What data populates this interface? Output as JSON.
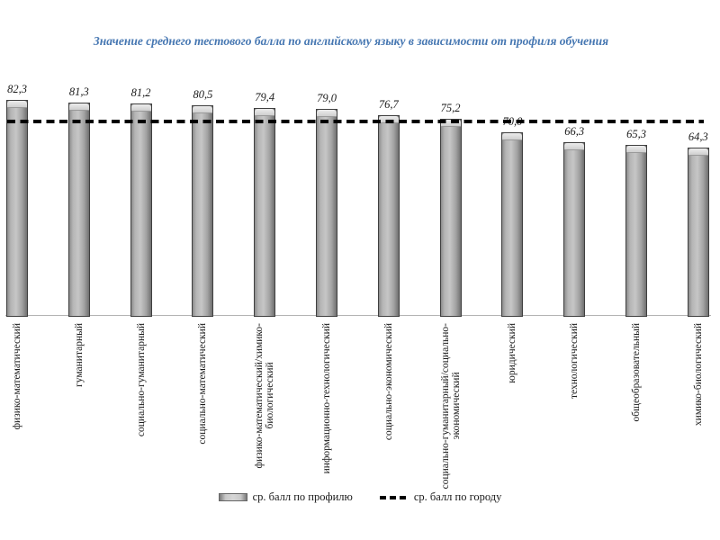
{
  "title": "Значение среднего тестового балла по английскому языку в зависимости от профиля обучения",
  "accent_color": "#4677b2",
  "legend": {
    "profile_label": "ср. балл по профилю",
    "city_label": "ср. балл по городу"
  },
  "chart_data": {
    "type": "bar",
    "title": "Значение среднего тестового балла по английскому языку в зависимости от профиля обучения",
    "categories": [
      "физико-математический",
      "гуманитарный",
      "социально-гуманитарный",
      "социально-математический",
      "физико-математический/химико-биологический",
      "информационно-технологический",
      "социально-экономический",
      "социально-гуманитарный/социально-экономический",
      "юридический",
      "технологический",
      "общеобразовательный",
      "химико-биологический"
    ],
    "category_lines": [
      [
        "физико-математический"
      ],
      [
        "гуманитарный"
      ],
      [
        "социально-гуманитарный"
      ],
      [
        "социально-математический"
      ],
      [
        "физико-математический/химико-",
        "биологический"
      ],
      [
        "информационно-технологический"
      ],
      [
        "социально-экономический"
      ],
      [
        "социально-гуманитарный/социально-",
        "экономический"
      ],
      [
        "юридический"
      ],
      [
        "технологический"
      ],
      [
        "общеобразовательный"
      ],
      [
        "химико-биологический"
      ]
    ],
    "values": [
      82.3,
      81.3,
      81.2,
      80.5,
      79.4,
      79.0,
      76.7,
      75.2,
      70.0,
      66.3,
      65.3,
      64.3
    ],
    "value_labels": [
      "82,3",
      "81,3",
      "81,2",
      "80,5",
      "79,4",
      "79,0",
      "76,7",
      "75,2",
      "70,0",
      "66,3",
      "65,3",
      "64,3"
    ],
    "city_average_line": 74,
    "ylim": [
      0,
      90
    ],
    "grid": false,
    "legend_position": "bottom",
    "bar_color": "#a6a6a6",
    "line_color": "#000000",
    "series": [
      {
        "name": "ср. балл по профилю",
        "type": "bar"
      },
      {
        "name": "ср. балл по городу",
        "type": "dashed-line"
      }
    ]
  }
}
